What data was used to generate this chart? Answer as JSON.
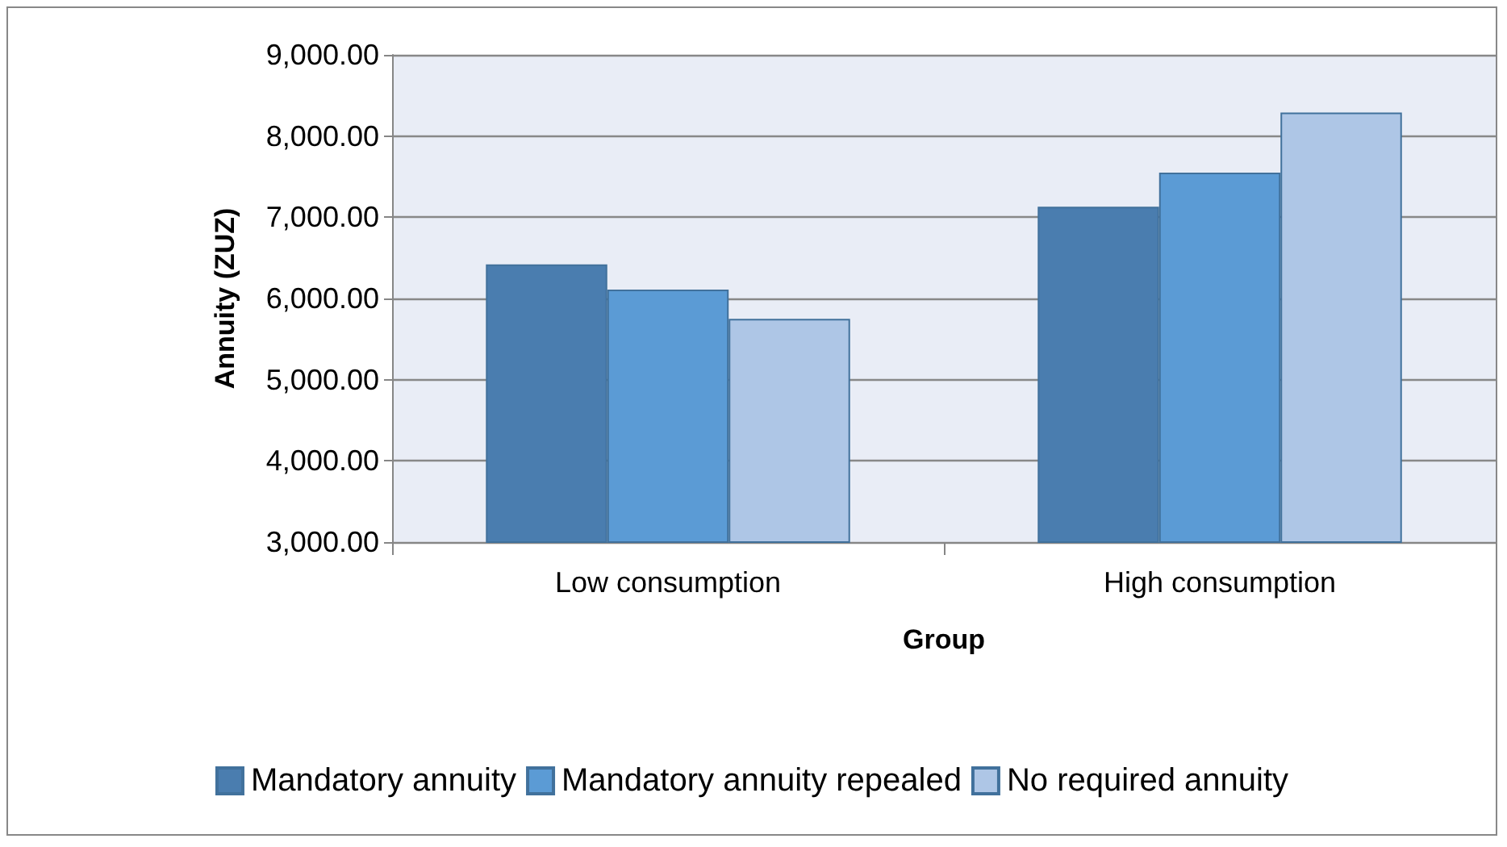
{
  "chart_data": {
    "type": "bar",
    "xlabel": "Group",
    "ylabel": "Annuity (ZUZ)",
    "categories": [
      "Low consumption",
      "High consumption"
    ],
    "series": [
      {
        "name": "Mandatory annuity",
        "color": "#4a7daf",
        "values": [
          6420,
          7130
        ]
      },
      {
        "name": "Mandatory annuity repealed",
        "color": "#5b9bd5",
        "values": [
          6110,
          7550
        ]
      },
      {
        "name": "No required annuity",
        "color": "#aec6e6",
        "values": [
          5750,
          8290
        ]
      }
    ],
    "ylim": [
      3000,
      9000
    ],
    "yticks": [
      {
        "value": 3000,
        "label": "3,000.00"
      },
      {
        "value": 4000,
        "label": "4,000.00"
      },
      {
        "value": 5000,
        "label": "5,000.00"
      },
      {
        "value": 6000,
        "label": "6,000.00"
      },
      {
        "value": 7000,
        "label": "7,000.00"
      },
      {
        "value": 8000,
        "label": "8,000.00"
      },
      {
        "value": 9000,
        "label": "9,000.00"
      }
    ],
    "grid": true,
    "legend": "bottom"
  }
}
